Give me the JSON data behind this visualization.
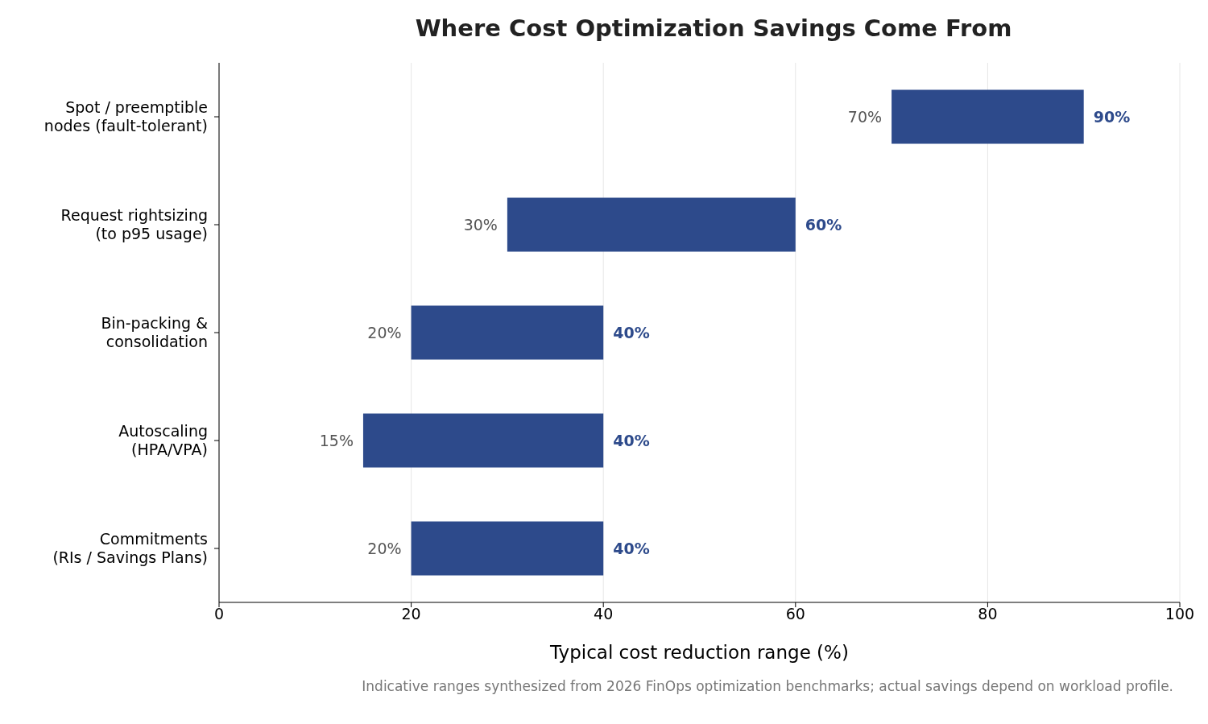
{
  "chart_data": {
    "type": "bar",
    "orientation": "horizontal",
    "title": "Where Cost Optimization Savings Come From",
    "xlabel": "Typical cost reduction range (%)",
    "categories": [
      "Spot / preemptible\nnodes (fault-tolerant)",
      "Request rightsizing\n(to p95 usage)",
      "Bin-packing &\nconsolidation",
      "Autoscaling\n(HPA/VPA)",
      "Commitments\n(RIs / Savings Plans)"
    ],
    "base": [
      70,
      30,
      20,
      15,
      20
    ],
    "values": [
      20,
      30,
      20,
      25,
      20
    ],
    "value_labels": [
      "90%",
      "60%",
      "40%",
      "40%",
      "40%"
    ],
    "color": "#2d4a8b",
    "xlim": [
      0,
      100
    ],
    "xticks": [
      0,
      20,
      40,
      60,
      80,
      100
    ],
    "grid": "x",
    "legend": false,
    "annotations": [
      {
        "text": "70%",
        "x": 70,
        "y": "Spot / preemptible\nnodes (fault-tolerant)"
      },
      {
        "text": "30%",
        "x": 30,
        "y": "Request rightsizing\n(to p95 usage)"
      },
      {
        "text": "20%",
        "x": 20,
        "y": "Bin-packing &\nconsolidation"
      },
      {
        "text": "15%",
        "x": 15,
        "y": "Autoscaling\n(HPA/VPA)"
      },
      {
        "text": "20%",
        "x": 20,
        "y": "Commitments\n(RIs / Savings Plans)"
      },
      "Indicative ranges synthesized from 2026 FinOps optimization benchmarks; actual savings depend on workload profile."
    ]
  }
}
